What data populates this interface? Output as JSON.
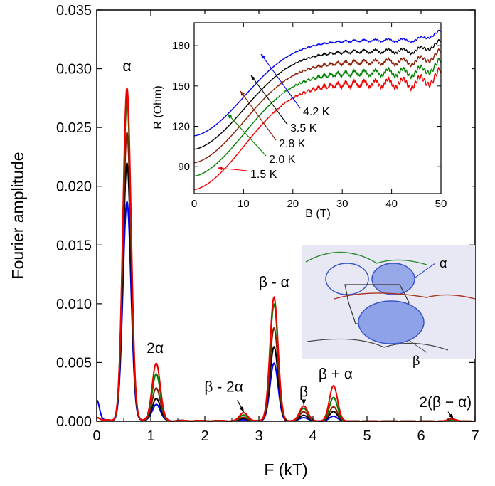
{
  "chart_data": [
    {
      "type": "line",
      "xlabel": "F (kT)",
      "ylabel": "Fourier amplitude",
      "xlim": [
        0,
        7
      ],
      "ylim": [
        0,
        0.035
      ],
      "xticks": [
        0,
        1,
        2,
        3,
        4,
        5,
        6,
        7
      ],
      "xtick_labels": [
        "0",
        "1",
        "2",
        "3",
        "4",
        "5",
        "6",
        "7"
      ],
      "yticks": [
        0,
        0.005,
        0.01,
        0.015,
        0.02,
        0.025,
        0.03,
        0.035
      ],
      "ytick_labels": [
        "0.000",
        "0.005",
        "0.010",
        "0.015",
        "0.020",
        "0.025",
        "0.030",
        "0.035"
      ],
      "peak_positions_kT": [
        0.56,
        1.1,
        2.72,
        3.28,
        3.83,
        4.38,
        6.57
      ],
      "series": [
        {
          "color": "#0000ee",
          "amplitudes": [
            0.0186,
            0.0014,
            0.0001,
            0.0049,
            0.0003,
            0.0004,
            0.0001
          ],
          "f0_amp": 0.0018
        },
        {
          "color": "#000000",
          "amplitudes": [
            0.0219,
            0.0019,
            0.0002,
            0.0063,
            0.0005,
            0.0008,
            0.0001
          ],
          "f0_amp": 0.0003
        },
        {
          "color": "#8b1a00",
          "amplitudes": [
            0.0245,
            0.0028,
            0.0003,
            0.0079,
            0.0008,
            0.0012,
            0.0001
          ],
          "f0_amp": 0.0003
        },
        {
          "color": "#008000",
          "amplitudes": [
            0.0273,
            0.004,
            0.0005,
            0.0099,
            0.0011,
            0.002,
            0.0001
          ],
          "f0_amp": 0.0003
        },
        {
          "color": "#ee0000",
          "amplitudes": [
            0.0283,
            0.0049,
            0.0007,
            0.0105,
            0.0013,
            0.003,
            0.0002
          ],
          "f0_amp": 0.0003
        }
      ],
      "annotations": [
        {
          "text": "α",
          "x": 0.56,
          "y": 0.0298
        },
        {
          "text": "2α",
          "x": 1.08,
          "y": 0.0058
        },
        {
          "text": "β - 2α",
          "x": 2.35,
          "y": 0.0025
        },
        {
          "text": "β - α",
          "x": 3.28,
          "y": 0.0114
        },
        {
          "text": "β",
          "x": 3.83,
          "y": 0.0021
        },
        {
          "text": "β + α",
          "x": 4.42,
          "y": 0.0036
        },
        {
          "text": "2(β − α)",
          "x": 6.45,
          "y": 0.0012
        }
      ]
    },
    {
      "type": "line",
      "xlabel": "B (T)",
      "ylabel": "R (Ohm)",
      "xlim": [
        0,
        50
      ],
      "ylim": [
        70,
        197
      ],
      "xticks": [
        0,
        10,
        20,
        30,
        40,
        50
      ],
      "xtick_labels": [
        "0",
        "10",
        "20",
        "30",
        "40",
        "50"
      ],
      "yticks": [
        90,
        120,
        150,
        180
      ],
      "ytick_labels": [
        "90",
        "120",
        "150",
        "180"
      ],
      "series": [
        {
          "name": "4.2 K",
          "color": "#0000ee",
          "r0": 113,
          "r_plateau": 184,
          "osc": 1.5
        },
        {
          "name": "3.5 K",
          "color": "#000000",
          "r0": 103,
          "r_plateau": 176,
          "osc": 2.2
        },
        {
          "name": "2.8 K",
          "color": "#8b1a00",
          "r0": 93,
          "r_plateau": 168,
          "osc": 3.0
        },
        {
          "name": "2.0 K",
          "color": "#008000",
          "r0": 83,
          "r_plateau": 160,
          "osc": 3.8
        },
        {
          "name": "1.5 K",
          "color": "#ee0000",
          "r0": 73,
          "r_plateau": 152,
          "osc": 4.6
        }
      ]
    }
  ],
  "schematic": {
    "alpha_label": "α",
    "beta_label": "β",
    "alpha_color": "#2b4ac2",
    "beta_color": "#ee0000"
  }
}
